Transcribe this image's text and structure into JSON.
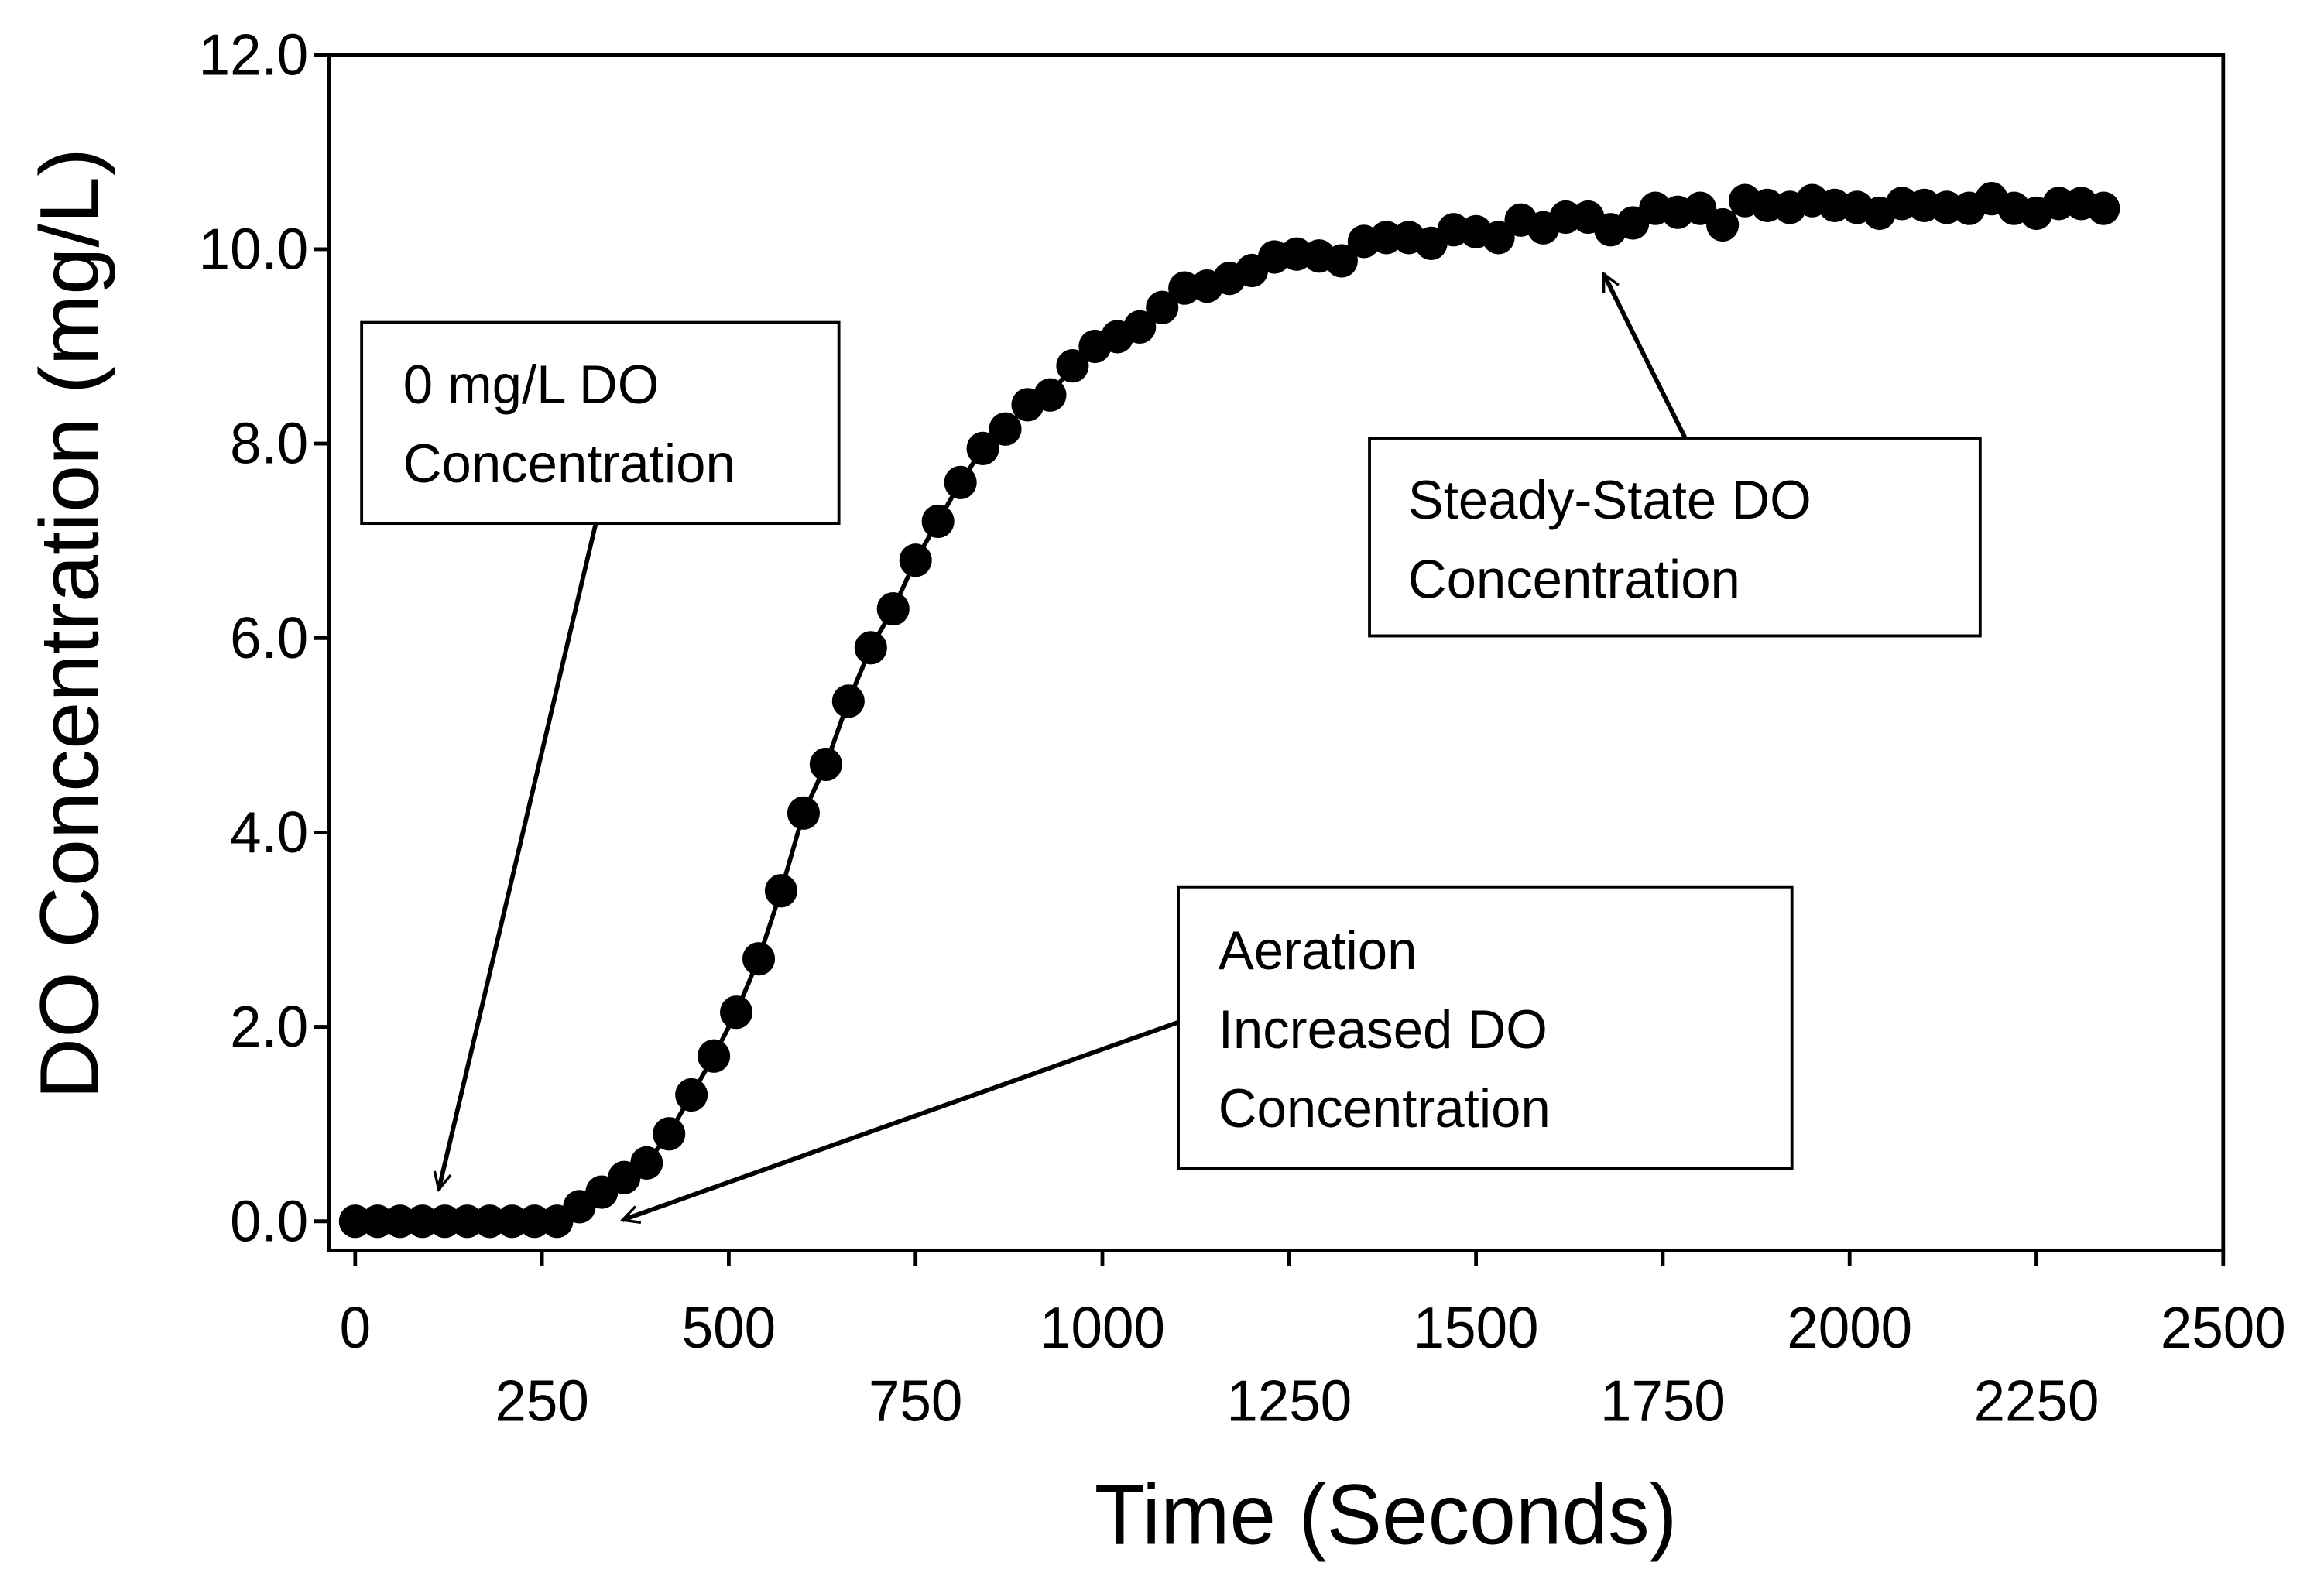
{
  "chart_data": {
    "type": "line",
    "xlabel": "Time (Seconds)",
    "ylabel": "DO Concentration (mg/L)",
    "x": [
      0,
      30,
      60,
      90,
      120,
      150,
      180,
      210,
      240,
      270,
      300,
      330,
      360,
      390,
      420,
      450,
      480,
      510,
      540,
      570,
      600,
      630,
      660,
      690,
      720,
      750,
      780,
      810,
      840,
      870,
      900,
      930,
      960,
      990,
      1020,
      1050,
      1080,
      1110,
      1140,
      1170,
      1200,
      1230,
      1260,
      1290,
      1320,
      1350,
      1380,
      1410,
      1440,
      1470,
      1500,
      1530,
      1560,
      1590,
      1620,
      1650,
      1680,
      1710,
      1740,
      1770,
      1800,
      1830,
      1860,
      1890,
      1920,
      1950,
      1980,
      2010,
      2040,
      2070,
      2100,
      2130,
      2160,
      2190,
      2220,
      2250,
      2280,
      2310,
      2340
    ],
    "series": [
      {
        "name": "DO",
        "color": "#000000",
        "values": [
          0,
          0,
          0,
          0,
          0,
          0,
          0,
          0,
          0,
          0,
          0.15,
          0.3,
          0.45,
          0.6,
          0.9,
          1.3,
          1.7,
          2.15,
          2.7,
          3.4,
          4.2,
          4.7,
          5.35,
          5.9,
          6.3,
          6.8,
          7.2,
          7.6,
          7.95,
          8.15,
          8.4,
          8.5,
          8.8,
          9.0,
          9.1,
          9.2,
          9.4,
          9.6,
          9.62,
          9.7,
          9.78,
          9.92,
          9.95,
          9.93,
          9.88,
          10.08,
          10.12,
          10.12,
          10.06,
          10.2,
          10.18,
          10.12,
          10.3,
          10.22,
          10.33,
          10.33,
          10.2,
          10.27,
          10.42,
          10.38,
          10.42,
          10.25,
          10.5,
          10.45,
          10.43,
          10.5,
          10.45,
          10.43,
          10.37,
          10.47,
          10.45,
          10.43,
          10.42,
          10.52,
          10.42,
          10.37,
          10.47,
          10.47,
          10.42
        ]
      }
    ],
    "xlim": [
      -35,
      2500
    ],
    "xticks": [
      0,
      250,
      500,
      750,
      1000,
      1250,
      1500,
      1750,
      2000,
      2250,
      2500
    ],
    "ylim": [
      -0.3,
      12
    ],
    "yticks": [
      {
        "value": 0,
        "label": "0.0"
      },
      {
        "value": 2,
        "label": "2.0"
      },
      {
        "value": 4,
        "label": "4.0"
      },
      {
        "value": 6,
        "label": "6.0"
      },
      {
        "value": 8,
        "label": "8.0"
      },
      {
        "value": 10,
        "label": "10.0"
      },
      {
        "value": 12,
        "label": "12.0"
      }
    ],
    "annotations": [
      {
        "lines": [
          "0 mg/L DO",
          "Concentration"
        ]
      },
      {
        "lines": [
          "Steady-State DO",
          "Concentration"
        ]
      },
      {
        "lines": [
          "Aeration",
          "Increased DO",
          "Concentration"
        ]
      }
    ]
  }
}
